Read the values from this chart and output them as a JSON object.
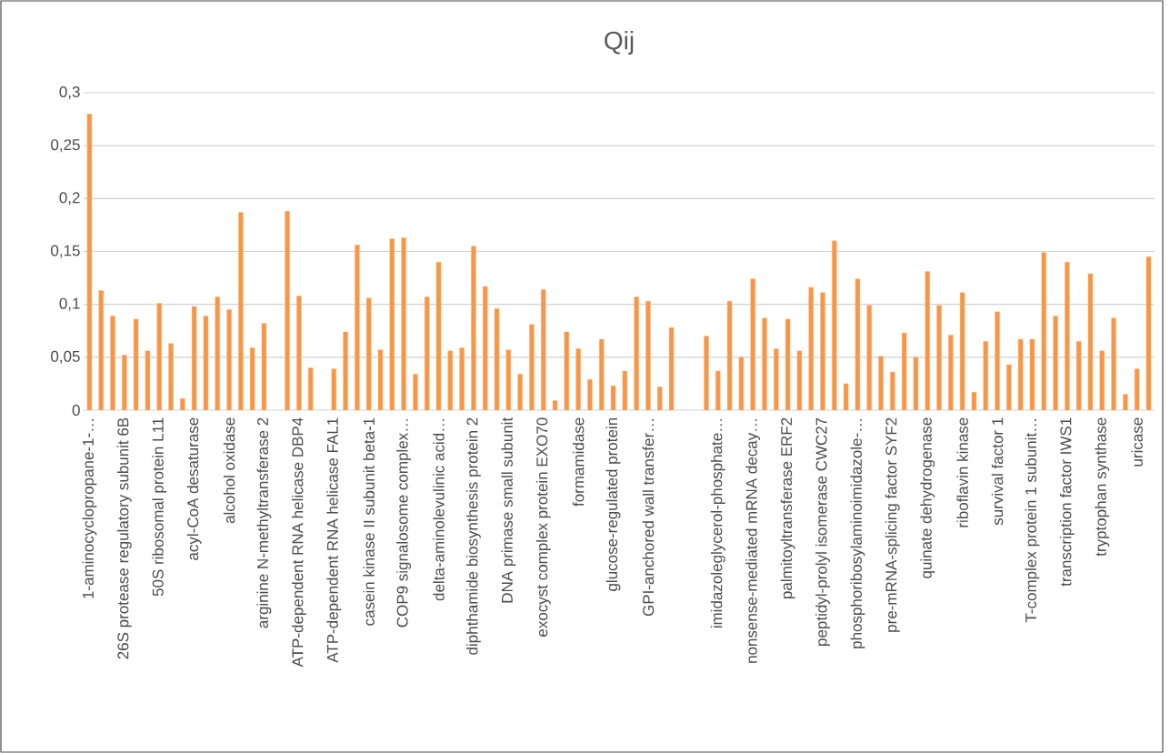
{
  "chart_data": {
    "type": "bar",
    "title": "Qij",
    "categories": [
      "1-aminocyclopropane-1-…",
      null,
      null,
      "26S protease regulatory subunit 6B",
      null,
      null,
      "50S ribosomal protein L11",
      null,
      null,
      "acyl-CoA desaturase",
      null,
      null,
      "alcohol oxidase",
      null,
      null,
      "arginine N-methyltransferase 2",
      null,
      null,
      "ATP-dependent RNA helicase DBP4",
      null,
      null,
      "ATP-dependent RNA helicase FAL1",
      null,
      null,
      "casein kinase II subunit beta-1",
      null,
      null,
      "COP9 signalosome complex…",
      null,
      null,
      "delta-aminolevulinic acid…",
      null,
      null,
      "diphthamide biosynthesis protein 2",
      null,
      null,
      "DNA primase small subunit",
      null,
      null,
      "exocyst complex protein EXO70",
      null,
      null,
      "formamidase",
      null,
      null,
      "glucose-regulated protein",
      null,
      null,
      "GPI-anchored wall transfer…",
      null,
      null,
      null,
      null,
      null,
      "imidazoleglycerol-phosphate…",
      null,
      null,
      "nonsense-mediated mRNA decay…",
      null,
      null,
      "palmitoyltransferase ERF2",
      null,
      null,
      "peptidyl-prolyl isomerase CWC27",
      null,
      null,
      "phosphoribosylaminoimidazole-…",
      null,
      null,
      "pre-mRNA-splicing factor SYF2",
      null,
      null,
      "quinate dehydrogenase",
      null,
      null,
      "riboflavin kinase",
      null,
      null,
      "survival factor 1",
      null,
      null,
      "T-complex protein 1 subunit…",
      null,
      null,
      "transcription factor IWS1",
      null,
      null,
      "tryptophan synthase",
      null,
      null,
      "uricase",
      null
    ],
    "values": [
      0.28,
      0.113,
      0.089,
      0.052,
      0.086,
      0.056,
      0.101,
      0.063,
      0.011,
      0.098,
      0.089,
      0.107,
      0.095,
      0.187,
      0.059,
      0.082,
      null,
      0.188,
      0.108,
      0.04,
      null,
      0.039,
      0.074,
      0.156,
      0.106,
      0.057,
      0.162,
      0.163,
      0.034,
      0.107,
      0.14,
      0.056,
      0.059,
      0.155,
      0.117,
      0.096,
      0.057,
      0.034,
      0.081,
      0.114,
      0.009,
      0.074,
      0.058,
      0.029,
      0.067,
      0.023,
      0.037,
      0.107,
      0.103,
      0.022,
      0.078,
      null,
      null,
      0.07,
      0.037,
      0.103,
      0.05,
      0.124,
      0.087,
      0.058,
      0.086,
      0.056,
      0.116,
      0.111,
      0.16,
      0.025,
      0.124,
      0.099,
      0.051,
      0.036,
      0.073,
      0.05,
      0.131,
      0.099,
      0.071,
      0.111,
      0.017,
      0.065,
      0.093,
      0.043,
      0.067,
      0.067,
      0.149,
      0.089,
      0.14,
      0.065,
      0.129,
      0.056,
      0.087,
      0.015,
      0.039,
      0.145
    ],
    "color": "#f79646",
    "ylim": [
      0,
      0.3
    ],
    "yticks": [
      0,
      {
        "value": 0.05,
        "label": "0,05"
      },
      {
        "value": 0.1,
        "label": "0,1"
      },
      {
        "value": 0.15,
        "label": "0,15"
      },
      {
        "value": 0.2,
        "label": "0,2"
      },
      {
        "value": 0.25,
        "label": "0,25"
      },
      {
        "value": 0.3,
        "label": "0,3"
      }
    ],
    "grid": "y"
  }
}
